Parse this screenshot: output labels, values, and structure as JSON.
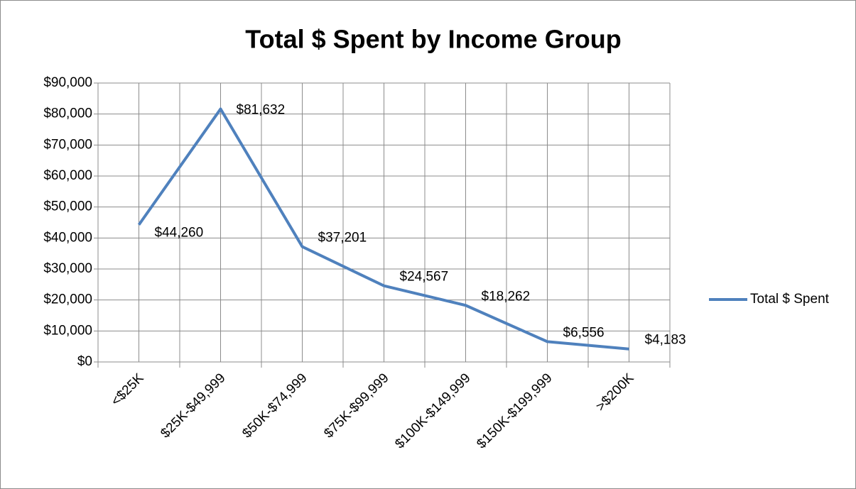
{
  "chart_data": {
    "type": "line",
    "title": "Total $ Spent by Income Group",
    "categories": [
      "<$25K",
      "$25K-$49,999",
      "$50K-$74,999",
      "$75K-$99,999",
      "$100K-$149,999",
      "$150K-$199,999",
      ">$200K"
    ],
    "series": [
      {
        "name": "Total $ Spent",
        "color": "#4f81bd",
        "values": [
          44260,
          81632,
          37201,
          24567,
          18262,
          6556,
          4183
        ],
        "value_labels": [
          "$44,260",
          "$81,632",
          "$37,201",
          "$24,567",
          "$18,262",
          "$6,556",
          "$4,183"
        ]
      }
    ],
    "ylim": [
      0,
      90000
    ],
    "yticks": [
      {
        "value": 0,
        "label": "$0"
      },
      {
        "value": 10000,
        "label": "$10,000"
      },
      {
        "value": 20000,
        "label": "$20,000"
      },
      {
        "value": 30000,
        "label": "$30,000"
      },
      {
        "value": 40000,
        "label": "$40,000"
      },
      {
        "value": 50000,
        "label": "$50,000"
      },
      {
        "value": 60000,
        "label": "$60,000"
      },
      {
        "value": 70000,
        "label": "$70,000"
      },
      {
        "value": 80000,
        "label": "$80,000"
      },
      {
        "value": 90000,
        "label": "$90,000"
      }
    ],
    "grid": true,
    "legend": "right"
  }
}
